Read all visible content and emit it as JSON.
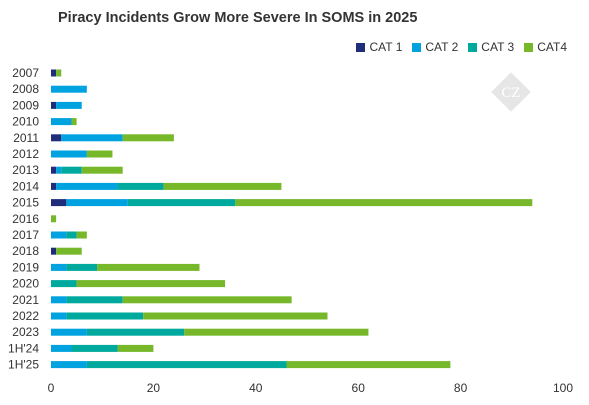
{
  "chart_data": {
    "type": "bar",
    "orientation": "horizontal",
    "stacked": true,
    "title": "Piracy Incidents Grow More Severe In SOMS in 2025",
    "categories": [
      "2007",
      "2008",
      "2009",
      "2010",
      "2011",
      "2012",
      "2013",
      "2014",
      "2015",
      "2016",
      "2017",
      "2018",
      "2019",
      "2020",
      "2021",
      "2022",
      "2023",
      "1H'24",
      "1H'25"
    ],
    "series": [
      {
        "name": "CAT 1",
        "color": "#1f2d7a",
        "values": [
          1,
          0,
          1,
          0,
          2,
          0,
          1,
          1,
          3,
          0,
          0,
          1,
          0,
          0,
          0,
          0,
          0,
          0,
          0
        ]
      },
      {
        "name": "CAT 2",
        "color": "#00a3e0",
        "values": [
          0,
          7,
          5,
          4,
          12,
          7,
          1,
          12,
          12,
          0,
          3,
          0,
          3,
          0,
          3,
          3,
          7,
          4,
          7
        ]
      },
      {
        "name": "CAT 3",
        "color": "#00a99d",
        "values": [
          0,
          0,
          0,
          0,
          0,
          0,
          4,
          9,
          21,
          0,
          2,
          0,
          6,
          5,
          11,
          15,
          19,
          9,
          39
        ]
      },
      {
        "name": "CAT4",
        "color": "#76b82a",
        "values": [
          1,
          0,
          0,
          1,
          10,
          5,
          8,
          23,
          58,
          1,
          2,
          5,
          20,
          29,
          33,
          36,
          36,
          7,
          32
        ]
      }
    ],
    "xlim": [
      0,
      100
    ],
    "xticks": [
      "0",
      "20",
      "40",
      "60",
      "80",
      "100"
    ],
    "xlabel": "",
    "ylabel": "",
    "legend_position": "top-right",
    "grid": false,
    "watermark": "CZ"
  }
}
